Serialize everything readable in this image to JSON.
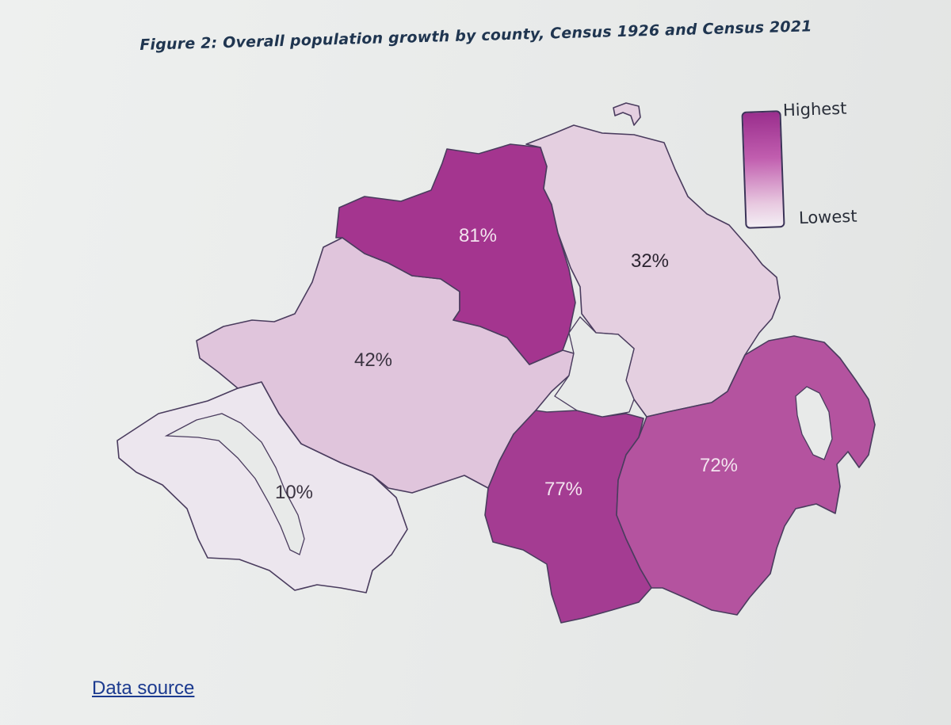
{
  "figure": {
    "title": "Figure 2: Overall population growth by county, Census 1926 and Census 2021"
  },
  "legend": {
    "high_label": "Highest",
    "low_label": "Lowest",
    "high_color": "#9a2e8d",
    "low_color": "#f3eef4"
  },
  "counties": [
    {
      "id": "londonderry",
      "value": "81%",
      "fill": "#a4358f",
      "label_color": "#f3e4ef"
    },
    {
      "id": "antrim",
      "value": "32%",
      "fill": "#e4cfe0",
      "label_color": "#2b2430"
    },
    {
      "id": "tyrone",
      "value": "42%",
      "fill": "#e0c5dc",
      "label_color": "#3a3340"
    },
    {
      "id": "fermanagh",
      "value": "10%",
      "fill": "#ece6ee",
      "label_color": "#3a3340"
    },
    {
      "id": "armagh",
      "value": "77%",
      "fill": "#a43c92",
      "label_color": "#f3e4ef"
    },
    {
      "id": "down",
      "value": "72%",
      "fill": "#b4539f",
      "label_color": "#f3e4ef"
    }
  ],
  "footer": {
    "link_label": "Data source"
  }
}
